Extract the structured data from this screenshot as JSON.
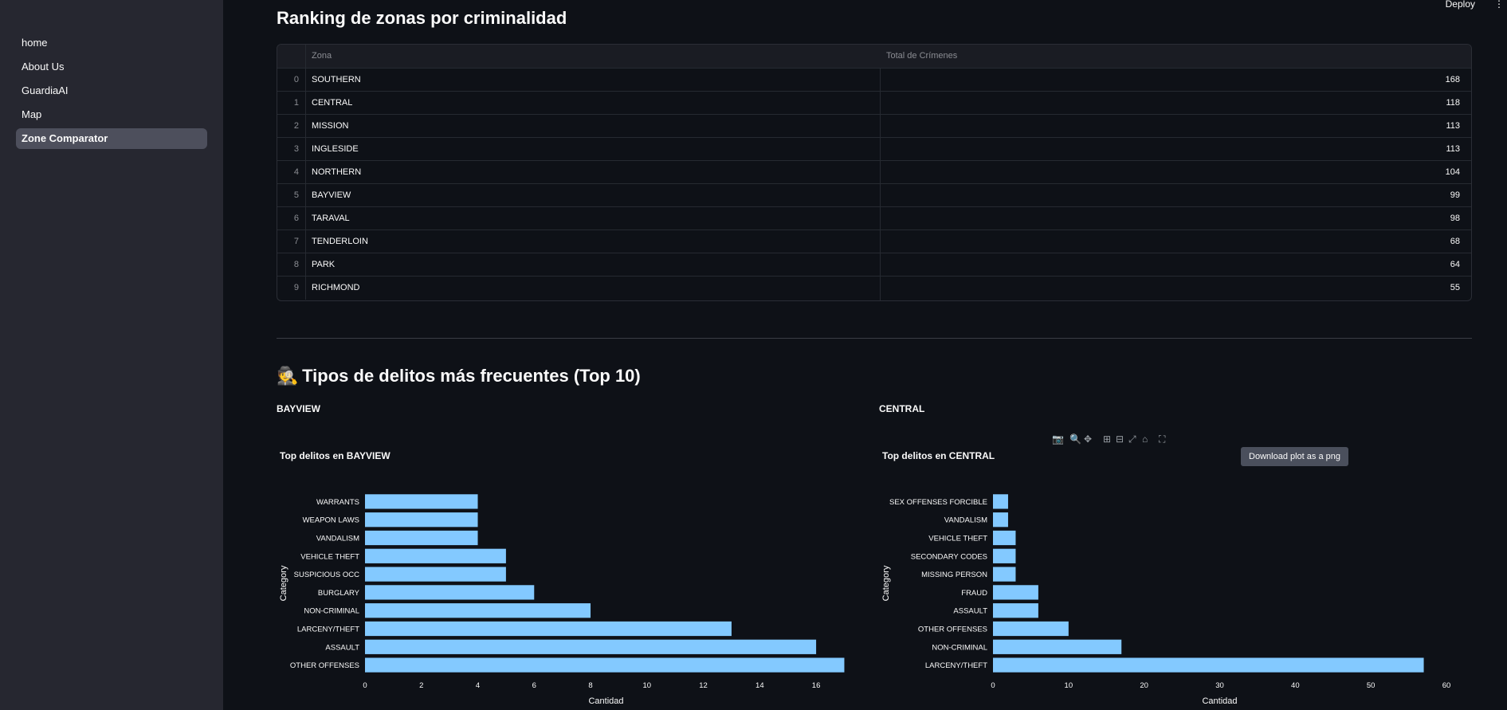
{
  "app": {
    "deploy_label": "Deploy",
    "menu_glyph": "⋮"
  },
  "sidebar": {
    "items": [
      {
        "label": "home",
        "active": false
      },
      {
        "label": "About Us",
        "active": false
      },
      {
        "label": "GuardiaAI",
        "active": false
      },
      {
        "label": "Map",
        "active": false
      },
      {
        "label": "Zone Comparator",
        "active": true
      }
    ]
  },
  "ranking": {
    "title": "Ranking de zonas por criminalidad",
    "columns": [
      "",
      "Zona",
      "Total de Crímenes"
    ],
    "rows": [
      {
        "index": "0",
        "zona": "SOUTHERN",
        "total": "168"
      },
      {
        "index": "1",
        "zona": "CENTRAL",
        "total": "118"
      },
      {
        "index": "2",
        "zona": "MISSION",
        "total": "113"
      },
      {
        "index": "3",
        "zona": "INGLESIDE",
        "total": "113"
      },
      {
        "index": "4",
        "zona": "NORTHERN",
        "total": "104"
      },
      {
        "index": "5",
        "zona": "BAYVIEW",
        "total": "99"
      },
      {
        "index": "6",
        "zona": "TARAVAL",
        "total": "98"
      },
      {
        "index": "7",
        "zona": "TENDERLOIN",
        "total": "68"
      },
      {
        "index": "8",
        "zona": "PARK",
        "total": "64"
      },
      {
        "index": "9",
        "zona": "RICHMOND",
        "total": "55"
      }
    ]
  },
  "tipos": {
    "emoji": "🕵️",
    "title": "Tipos de delitos más frecuentes (Top 10)",
    "left_zone": "BAYVIEW",
    "right_zone": "CENTRAL"
  },
  "modebar": {
    "tooltip": "Download plot as a png",
    "icons": [
      "camera-icon",
      "zoom-icon",
      "pan-icon",
      "zoom-in-icon",
      "zoom-out-icon",
      "autoscale-icon",
      "reset-axes-icon",
      "fullscreen-icon"
    ]
  },
  "colors": {
    "bar": "#83c9ff",
    "background": "#0e1117",
    "sidebar": "#262730"
  },
  "chart_data": [
    {
      "type": "bar",
      "orientation": "horizontal",
      "title": "Top delitos en BAYVIEW",
      "xlabel": "Cantidad",
      "ylabel": "Category",
      "categories": [
        "WARRANTS",
        "WEAPON LAWS",
        "VANDALISM",
        "VEHICLE THEFT",
        "SUSPICIOUS OCC",
        "BURGLARY",
        "NON-CRIMINAL",
        "LARCENY/THEFT",
        "ASSAULT",
        "OTHER OFFENSES"
      ],
      "values": [
        4,
        4,
        4,
        5,
        5,
        6,
        8,
        13,
        16,
        17
      ],
      "xlim": [
        0,
        17.1
      ],
      "xticks": [
        0,
        2,
        4,
        6,
        8,
        10,
        12,
        14,
        16
      ]
    },
    {
      "type": "bar",
      "orientation": "horizontal",
      "title": "Top delitos en CENTRAL",
      "xlabel": "Cantidad",
      "ylabel": "Category",
      "categories": [
        "SEX OFFENSES FORCIBLE",
        "VANDALISM",
        "VEHICLE THEFT",
        "SECONDARY CODES",
        "MISSING PERSON",
        "FRAUD",
        "ASSAULT",
        "OTHER OFFENSES",
        "NON-CRIMINAL",
        "LARCENY/THEFT"
      ],
      "values": [
        2,
        2,
        3,
        3,
        3,
        6,
        6,
        10,
        17,
        57
      ],
      "xlim": [
        0,
        60
      ],
      "xticks": [
        0,
        10,
        20,
        30,
        40,
        50,
        60
      ]
    }
  ]
}
